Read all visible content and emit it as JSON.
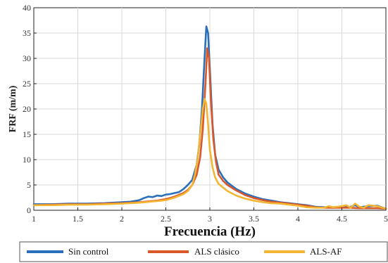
{
  "chart_data": {
    "type": "line",
    "xlabel": "Frecuencia (Hz)",
    "ylabel": "FRF (m/m)",
    "xlim": [
      1,
      5
    ],
    "ylim": [
      0,
      40
    ],
    "x_ticks": [
      1,
      1.5,
      2,
      2.5,
      3,
      3.5,
      4,
      4.5,
      5
    ],
    "x_tick_labels": [
      "1",
      "1.5",
      "2",
      "2.5",
      "3",
      "3.5",
      "4",
      "4.5",
      "5"
    ],
    "y_ticks": [
      0,
      5,
      10,
      15,
      20,
      25,
      30,
      35,
      40
    ],
    "y_tick_labels": [
      "0",
      "5",
      "10",
      "15",
      "20",
      "25",
      "30",
      "35",
      "40"
    ],
    "grid": true,
    "legend_position": "bottom",
    "series": [
      {
        "name": "Sin control",
        "color": "#2a6fbb",
        "points": [
          [
            1.0,
            1.2
          ],
          [
            1.2,
            1.2
          ],
          [
            1.4,
            1.3
          ],
          [
            1.6,
            1.3
          ],
          [
            1.8,
            1.4
          ],
          [
            2.0,
            1.6
          ],
          [
            2.1,
            1.7
          ],
          [
            2.2,
            2.0
          ],
          [
            2.25,
            2.4
          ],
          [
            2.3,
            2.7
          ],
          [
            2.35,
            2.6
          ],
          [
            2.4,
            2.9
          ],
          [
            2.45,
            2.8
          ],
          [
            2.5,
            3.1
          ],
          [
            2.55,
            3.2
          ],
          [
            2.6,
            3.4
          ],
          [
            2.65,
            3.6
          ],
          [
            2.7,
            4.2
          ],
          [
            2.75,
            5.0
          ],
          [
            2.8,
            6.0
          ],
          [
            2.85,
            9.0
          ],
          [
            2.88,
            13.0
          ],
          [
            2.91,
            20.0
          ],
          [
            2.94,
            30.0
          ],
          [
            2.96,
            36.3
          ],
          [
            2.98,
            35.0
          ],
          [
            3.0,
            28.0
          ],
          [
            3.03,
            17.0
          ],
          [
            3.06,
            11.0
          ],
          [
            3.1,
            8.0
          ],
          [
            3.15,
            6.5
          ],
          [
            3.2,
            5.5
          ],
          [
            3.3,
            4.2
          ],
          [
            3.4,
            3.3
          ],
          [
            3.5,
            2.7
          ],
          [
            3.6,
            2.2
          ],
          [
            3.7,
            1.9
          ],
          [
            3.8,
            1.6
          ],
          [
            3.9,
            1.4
          ],
          [
            4.0,
            1.2
          ],
          [
            4.1,
            1.0
          ],
          [
            4.2,
            0.7
          ],
          [
            4.3,
            0.6
          ],
          [
            4.4,
            0.5
          ],
          [
            4.5,
            0.6
          ],
          [
            4.6,
            0.7
          ],
          [
            4.65,
            1.0
          ],
          [
            4.7,
            0.6
          ],
          [
            4.8,
            0.8
          ],
          [
            4.9,
            0.9
          ],
          [
            5.0,
            0.3
          ]
        ]
      },
      {
        "name": "ALS clásico",
        "color": "#d9582a",
        "points": [
          [
            1.0,
            1.0
          ],
          [
            1.2,
            1.1
          ],
          [
            1.4,
            1.2
          ],
          [
            1.6,
            1.2
          ],
          [
            1.8,
            1.3
          ],
          [
            2.0,
            1.4
          ],
          [
            2.2,
            1.6
          ],
          [
            2.4,
            1.9
          ],
          [
            2.5,
            2.2
          ],
          [
            2.6,
            2.7
          ],
          [
            2.7,
            3.4
          ],
          [
            2.75,
            4.0
          ],
          [
            2.8,
            5.0
          ],
          [
            2.85,
            7.0
          ],
          [
            2.89,
            10.5
          ],
          [
            2.92,
            16.0
          ],
          [
            2.95,
            25.0
          ],
          [
            2.97,
            32.0
          ],
          [
            2.99,
            30.0
          ],
          [
            3.01,
            22.0
          ],
          [
            3.04,
            14.0
          ],
          [
            3.07,
            9.5
          ],
          [
            3.1,
            7.0
          ],
          [
            3.15,
            5.8
          ],
          [
            3.2,
            5.0
          ],
          [
            3.3,
            3.9
          ],
          [
            3.4,
            3.0
          ],
          [
            3.5,
            2.4
          ],
          [
            3.6,
            2.0
          ],
          [
            3.7,
            1.7
          ],
          [
            3.8,
            1.5
          ],
          [
            3.9,
            1.3
          ],
          [
            4.0,
            1.1
          ],
          [
            4.1,
            0.9
          ],
          [
            4.2,
            0.6
          ],
          [
            4.3,
            0.5
          ],
          [
            4.4,
            0.5
          ],
          [
            4.5,
            0.5
          ],
          [
            4.6,
            0.5
          ],
          [
            4.7,
            0.4
          ],
          [
            4.8,
            0.4
          ],
          [
            4.9,
            0.4
          ],
          [
            5.0,
            0.3
          ]
        ]
      },
      {
        "name": "ALS-AF",
        "color": "#f2b632",
        "points": [
          [
            1.0,
            1.0
          ],
          [
            1.2,
            1.0
          ],
          [
            1.4,
            1.1
          ],
          [
            1.6,
            1.1
          ],
          [
            1.8,
            1.2
          ],
          [
            2.0,
            1.3
          ],
          [
            2.2,
            1.5
          ],
          [
            2.4,
            1.8
          ],
          [
            2.5,
            2.0
          ],
          [
            2.6,
            2.5
          ],
          [
            2.7,
            3.2
          ],
          [
            2.75,
            3.8
          ],
          [
            2.8,
            5.0
          ],
          [
            2.83,
            7.0
          ],
          [
            2.86,
            10.0
          ],
          [
            2.89,
            15.0
          ],
          [
            2.92,
            20.0
          ],
          [
            2.94,
            22.0
          ],
          [
            2.96,
            21.0
          ],
          [
            2.98,
            17.0
          ],
          [
            3.0,
            12.0
          ],
          [
            3.03,
            8.5
          ],
          [
            3.06,
            6.5
          ],
          [
            3.1,
            5.2
          ],
          [
            3.2,
            3.8
          ],
          [
            3.3,
            2.9
          ],
          [
            3.4,
            2.3
          ],
          [
            3.5,
            1.9
          ],
          [
            3.6,
            1.6
          ],
          [
            3.7,
            1.4
          ],
          [
            3.8,
            1.3
          ],
          [
            3.9,
            1.1
          ],
          [
            4.0,
            0.9
          ],
          [
            4.1,
            0.6
          ],
          [
            4.2,
            0.5
          ],
          [
            4.3,
            0.5
          ],
          [
            4.35,
            0.8
          ],
          [
            4.4,
            0.6
          ],
          [
            4.5,
            0.8
          ],
          [
            4.55,
            1.0
          ],
          [
            4.6,
            0.5
          ],
          [
            4.65,
            1.3
          ],
          [
            4.7,
            0.7
          ],
          [
            4.75,
            0.5
          ],
          [
            4.8,
            1.0
          ],
          [
            4.9,
            0.8
          ],
          [
            5.0,
            0.3
          ]
        ]
      }
    ]
  }
}
